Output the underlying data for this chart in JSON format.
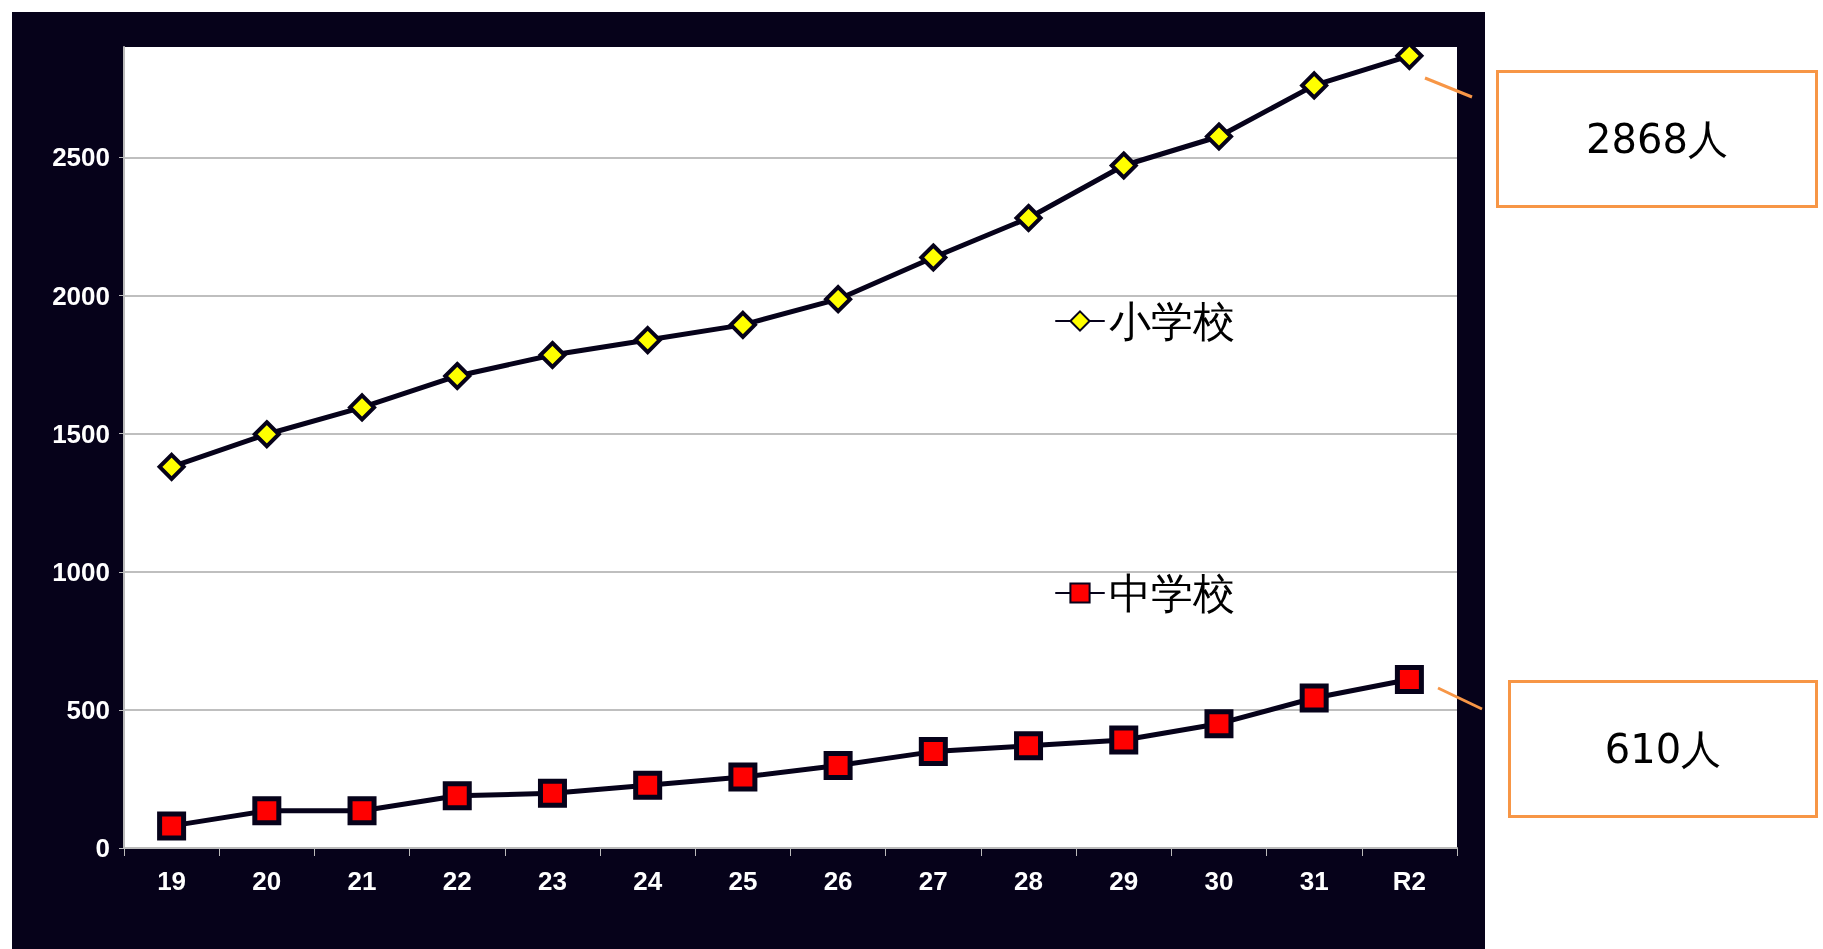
{
  "chart_data": {
    "type": "line",
    "categories": [
      "19",
      "20",
      "21",
      "22",
      "23",
      "24",
      "25",
      "26",
      "27",
      "28",
      "29",
      "30",
      "31",
      "R2"
    ],
    "series": [
      {
        "name": "小学校",
        "color": "#ffff00",
        "marker": "diamond",
        "values": [
          1380,
          1498,
          1595,
          1709,
          1785,
          1839,
          1894,
          1987,
          2138,
          2281,
          2471,
          2576,
          2761,
          2868
        ]
      },
      {
        "name": "中学校",
        "color": "#ff0000",
        "marker": "square",
        "values": [
          80,
          135,
          135,
          189,
          198,
          227,
          257,
          299,
          349,
          370,
          391,
          450,
          543,
          610
        ]
      }
    ],
    "ylim": [
      0,
      2900
    ],
    "yticks": [
      0,
      500,
      1000,
      1500,
      2000,
      2500
    ],
    "grid": "y",
    "legend": "right",
    "annotations": [
      "2868人",
      "610人"
    ]
  }
}
